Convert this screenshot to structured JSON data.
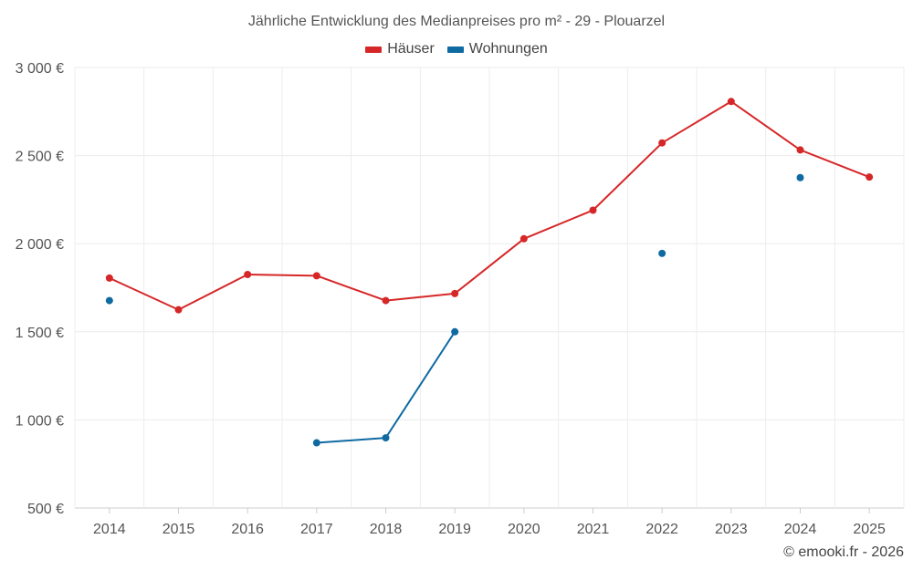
{
  "chart_data": {
    "type": "line",
    "title": "Jährliche Entwicklung des Medianpreises pro m² - 29 - Plouarzel",
    "categories": [
      "2014",
      "2015",
      "2016",
      "2017",
      "2018",
      "2019",
      "2020",
      "2021",
      "2022",
      "2023",
      "2024",
      "2025"
    ],
    "ylim": [
      500,
      3000
    ],
    "yticks": [
      500,
      1000,
      1500,
      2000,
      2500,
      3000
    ],
    "ytick_labels": [
      "500 €",
      "1 000 €",
      "1 500 €",
      "2 000 €",
      "2 500 €",
      "3 000 €"
    ],
    "grid": true,
    "legend_position": "top-center",
    "series": [
      {
        "name": "Häuser",
        "color": "#d62728",
        "values": [
          1805,
          1625,
          1825,
          1818,
          1677,
          1717,
          2028,
          2190,
          2572,
          2807,
          2532,
          2378
        ]
      },
      {
        "name": "Wohnungen",
        "color": "#0f6aa1",
        "values": [
          1677,
          null,
          null,
          870,
          898,
          1500,
          null,
          null,
          1945,
          null,
          2375,
          null
        ]
      }
    ]
  },
  "credit": "© emooki.fr - 2026"
}
